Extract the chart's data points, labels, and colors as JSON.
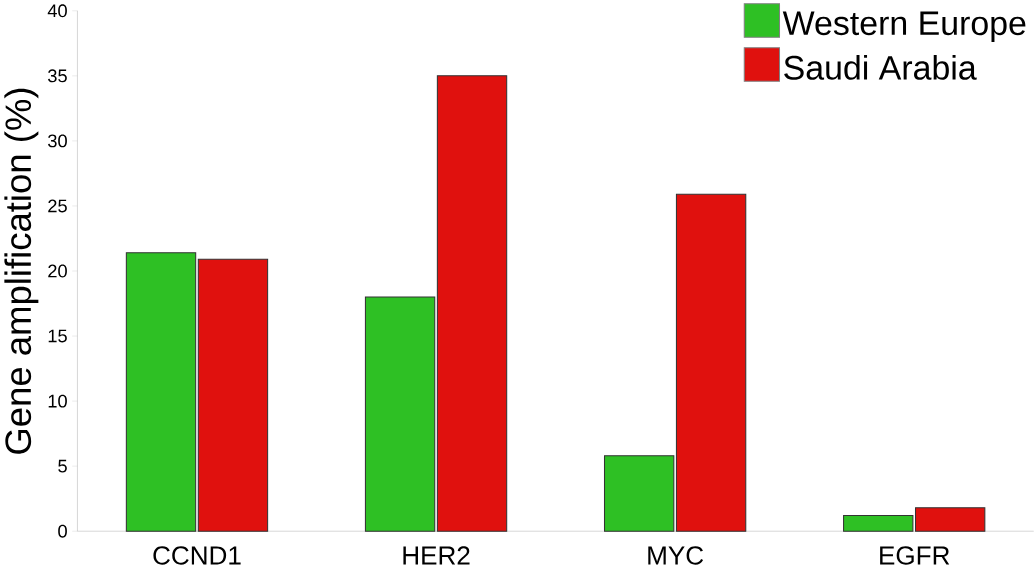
{
  "chart_data": {
    "type": "bar",
    "ylabel": "Gene amplification (%)",
    "categories": [
      "CCND1",
      "HER2",
      "MYC",
      "EGFR"
    ],
    "series": [
      {
        "name": "Western Europe",
        "color": "#2ec024",
        "values": [
          21.4,
          18.0,
          5.8,
          1.2
        ]
      },
      {
        "name": "Saudi Arabia",
        "color": "#e0110e",
        "values": [
          20.9,
          35.0,
          25.9,
          1.8
        ]
      }
    ],
    "ylim": [
      0,
      40
    ],
    "yticks": [
      0,
      5,
      10,
      15,
      20,
      25,
      30,
      35,
      40
    ],
    "grid": false,
    "legend": "top right"
  }
}
